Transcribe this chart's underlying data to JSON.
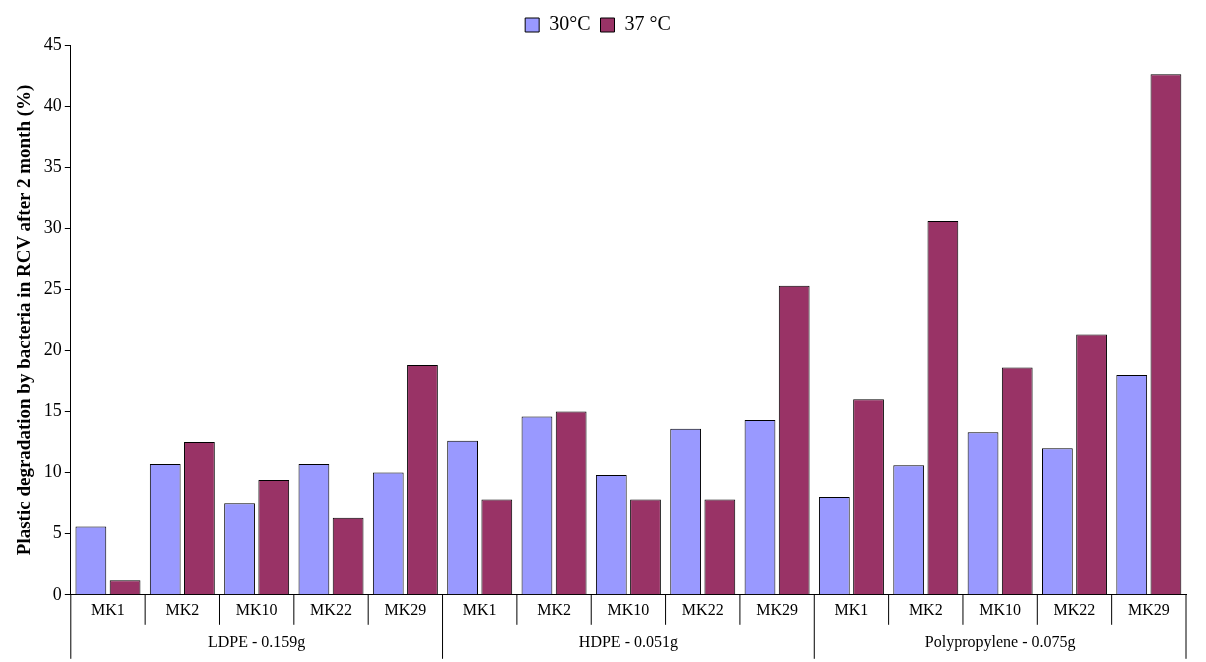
{
  "chart_data": {
    "type": "bar",
    "ylabel": "Plastic degradation by bacteria in RCV after 2 month (%)",
    "categories": [
      "MK1",
      "MK2",
      "MK10",
      "MK22",
      "MK29",
      "MK1",
      "MK2",
      "MK10",
      "MK22",
      "MK29",
      "MK1",
      "MK2",
      "MK10",
      "MK22",
      "MK29"
    ],
    "series": [
      {
        "name": "30°C",
        "color": "#9999ff",
        "values": [
          5.6,
          10.7,
          7.5,
          10.7,
          10.0,
          12.6,
          14.6,
          9.8,
          13.6,
          14.3,
          8.0,
          10.6,
          13.3,
          12.0,
          18.0
        ]
      },
      {
        "name": "37 °C",
        "color": "#993366",
        "values": [
          1.2,
          12.5,
          9.4,
          6.3,
          18.8,
          7.8,
          15.0,
          7.8,
          7.8,
          25.3,
          16.0,
          30.6,
          18.6,
          21.3,
          42.6
        ]
      }
    ],
    "annotations": [
      "LDPE - 0.159g",
      "HDPE - 0.051g",
      "Polypropylene - 0.075g"
    ],
    "ylim": [
      0,
      45
    ],
    "yticks": [
      0,
      5,
      10,
      15,
      20,
      25,
      30,
      35,
      40,
      45
    ],
    "grid": false,
    "legend": "top"
  }
}
